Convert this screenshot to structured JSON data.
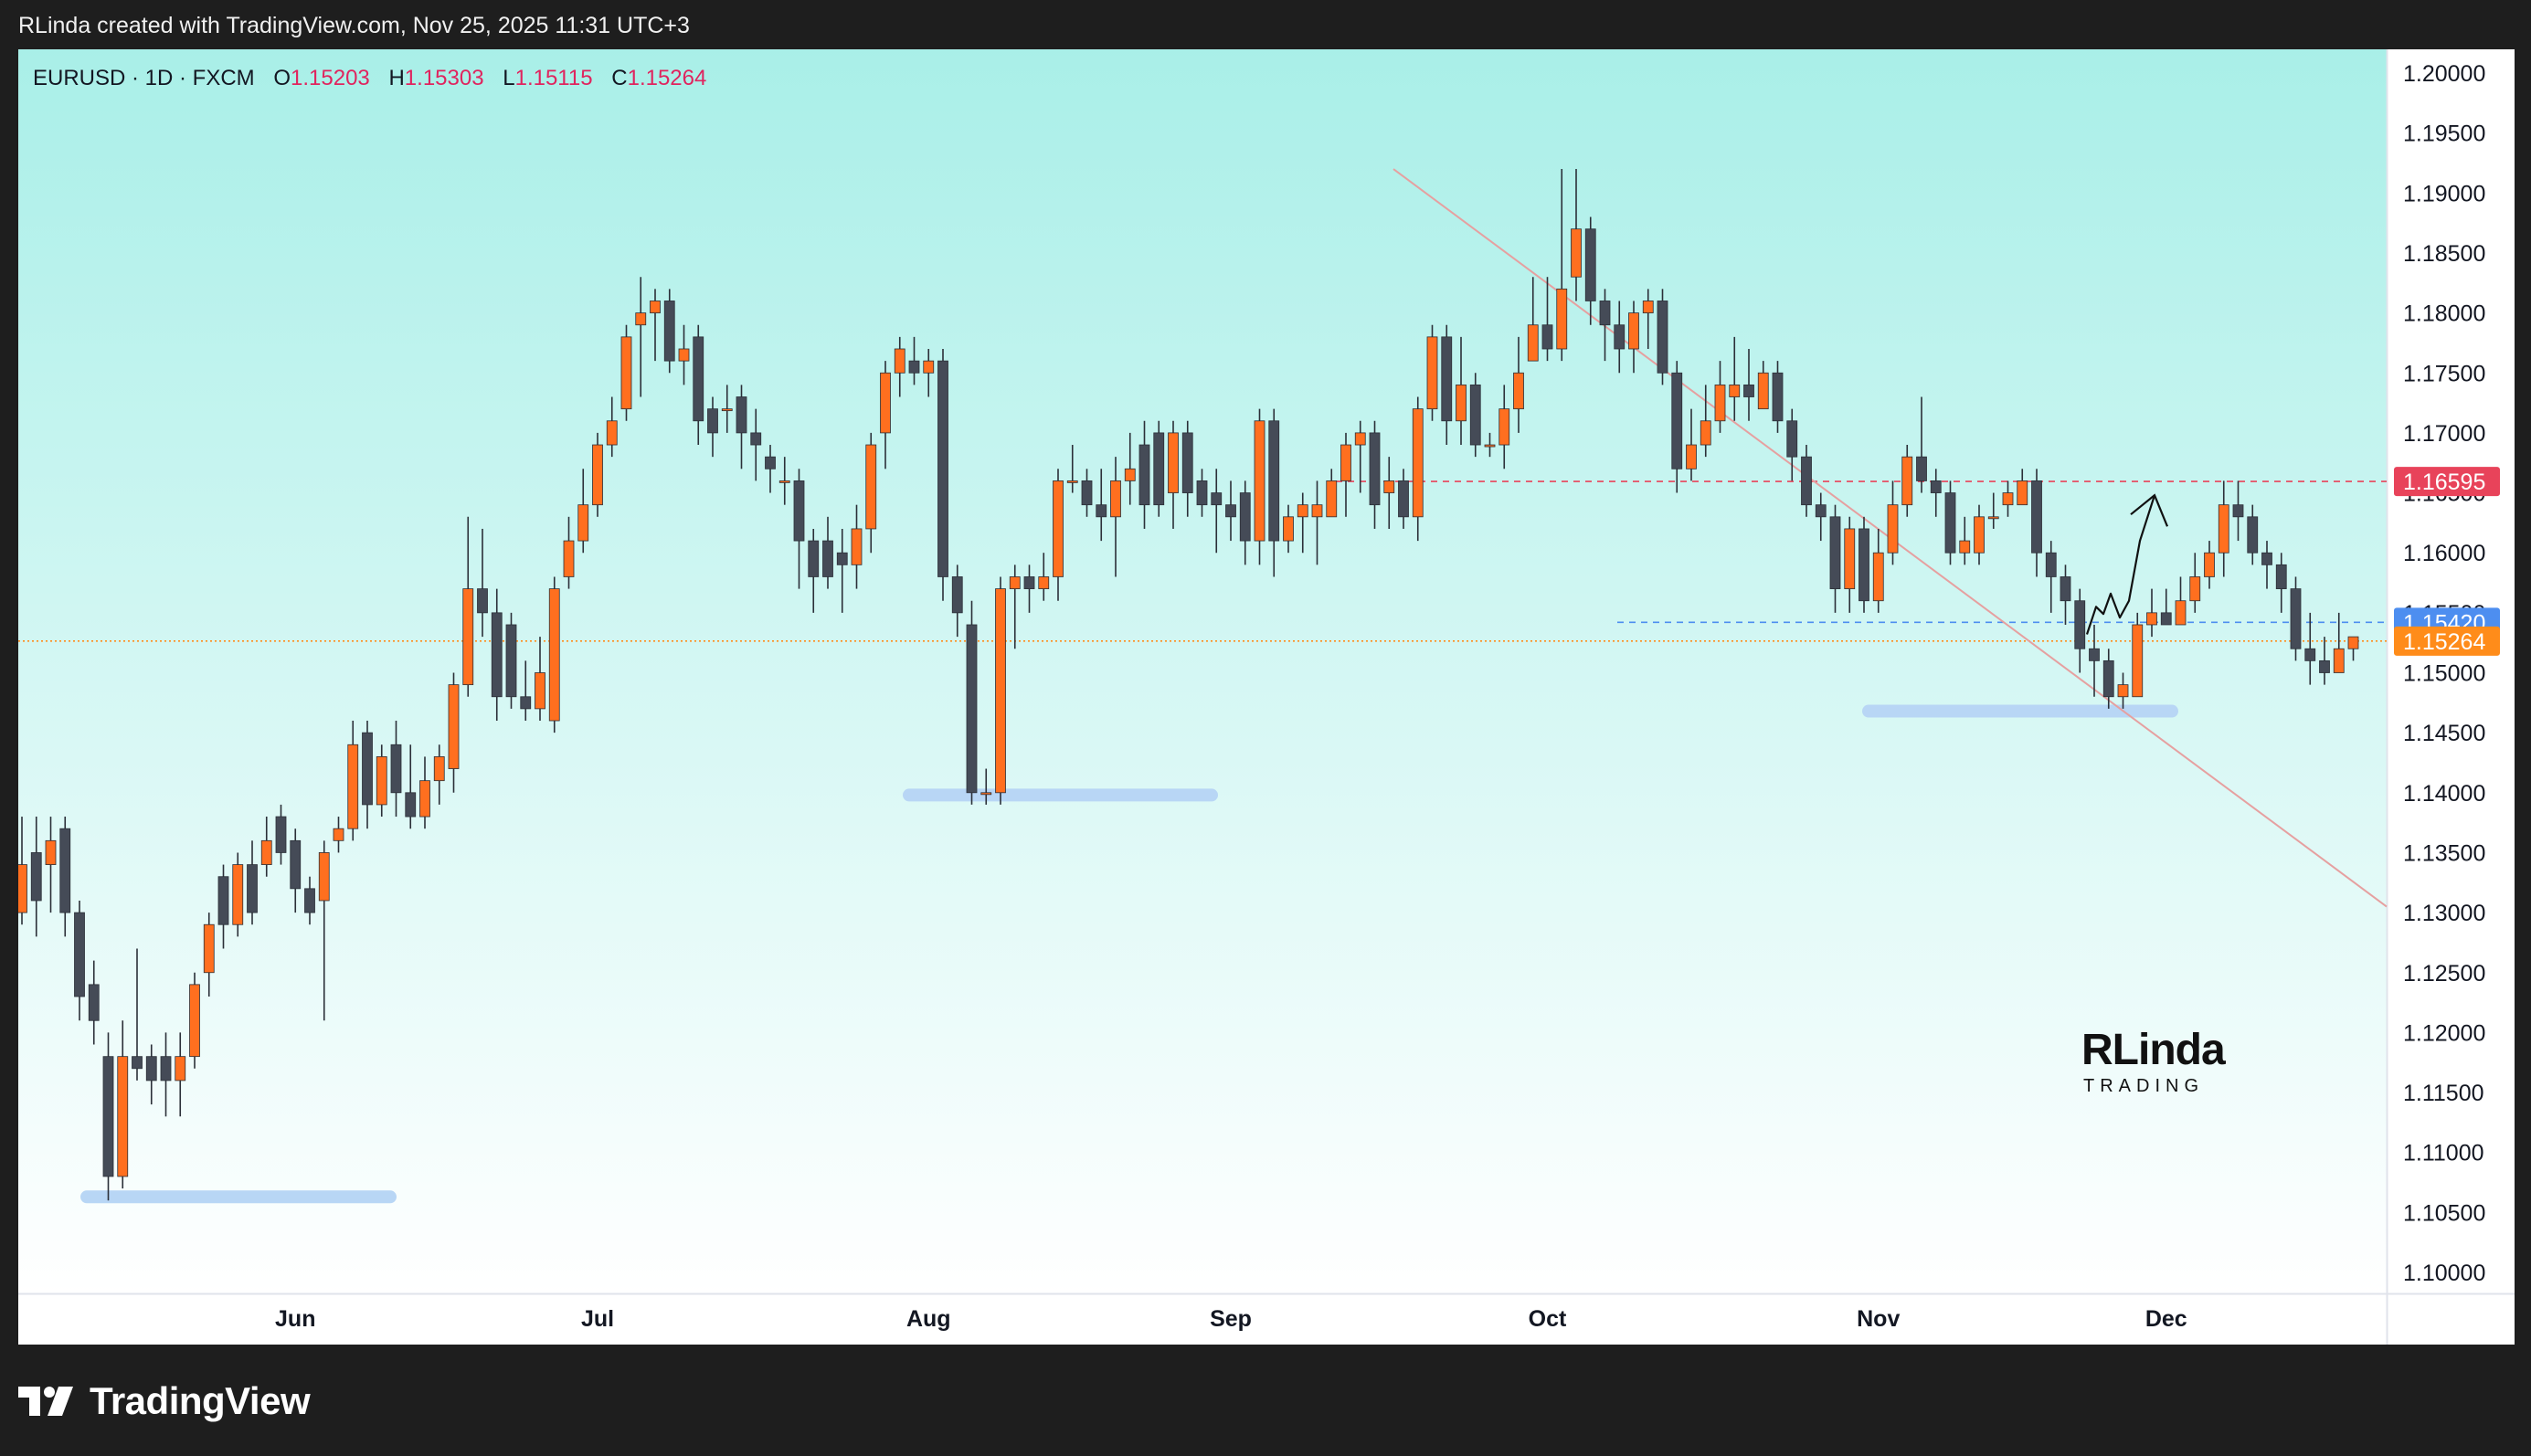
{
  "header": {
    "credit": "RLinda created with TradingView.com, Nov 25, 2025 11:31 UTC+3"
  },
  "legend": {
    "symbol": "EURUSD · 1D · FXCM",
    "o_label": "O",
    "o_value": "1.15203",
    "h_label": "H",
    "h_value": "1.15303",
    "l_label": "L",
    "l_value": "1.15115",
    "c_label": "C",
    "c_value": "1.15264"
  },
  "footer": {
    "brand": "TradingView"
  },
  "watermark": {
    "big": "RLinda",
    "small": "TRADING"
  },
  "colors": {
    "bull": "#ff6f1f",
    "bear": "#454b57",
    "bg_top": "#a9efe8",
    "bg_bottom": "#ffffff",
    "trendline": "#e6a0a0",
    "resistance": "#e8435a",
    "support_line": "#4d8ef0",
    "current_price": "#ff8c1a",
    "zone": "#b8d6f5",
    "month_label": "#131722"
  },
  "chart_data": {
    "type": "candlestick",
    "symbol": "EURUSD",
    "timeframe": "1D",
    "ylim": [
      1.1,
      1.2
    ],
    "y_ticks": [
      "1.20000",
      "1.19500",
      "1.19000",
      "1.18500",
      "1.18000",
      "1.17500",
      "1.17000",
      "1.16500",
      "1.16000",
      "1.15500",
      "1.15000",
      "1.14500",
      "1.14000",
      "1.13500",
      "1.13000",
      "1.12500",
      "1.12000",
      "1.11500",
      "1.11000",
      "1.10500",
      "1.10000"
    ],
    "x_labels": [
      {
        "label": "Jun",
        "index": 19
      },
      {
        "label": "Jul",
        "index": 40
      },
      {
        "label": "Aug",
        "index": 63
      },
      {
        "label": "Sep",
        "index": 84
      },
      {
        "label": "Oct",
        "index": 106
      },
      {
        "label": "Nov",
        "index": 129
      },
      {
        "label": "Dec",
        "index": 149
      }
    ],
    "price_tags": [
      {
        "label": "1.16595",
        "value": 1.16595,
        "color": "#e8435a"
      },
      {
        "label": "1.15420",
        "value": 1.1542,
        "color": "#4d8ef0"
      },
      {
        "label": "1.15264",
        "value": 1.15264,
        "color": "#ff8c1a"
      }
    ],
    "candles": [
      [
        1.13,
        1.134,
        1.138,
        1.129
      ],
      [
        1.135,
        1.131,
        1.138,
        1.128
      ],
      [
        1.134,
        1.136,
        1.138,
        1.13
      ],
      [
        1.137,
        1.13,
        1.138,
        1.128
      ],
      [
        1.13,
        1.123,
        1.131,
        1.121
      ],
      [
        1.124,
        1.121,
        1.126,
        1.119
      ],
      [
        1.118,
        1.108,
        1.12,
        1.106
      ],
      [
        1.108,
        1.118,
        1.121,
        1.107
      ],
      [
        1.118,
        1.117,
        1.127,
        1.116
      ],
      [
        1.118,
        1.116,
        1.119,
        1.114
      ],
      [
        1.118,
        1.116,
        1.12,
        1.113
      ],
      [
        1.116,
        1.118,
        1.12,
        1.113
      ],
      [
        1.118,
        1.124,
        1.125,
        1.117
      ],
      [
        1.125,
        1.129,
        1.13,
        1.123
      ],
      [
        1.133,
        1.129,
        1.134,
        1.127
      ],
      [
        1.129,
        1.134,
        1.135,
        1.128
      ],
      [
        1.134,
        1.13,
        1.136,
        1.129
      ],
      [
        1.134,
        1.136,
        1.138,
        1.133
      ],
      [
        1.138,
        1.135,
        1.139,
        1.134
      ],
      [
        1.136,
        1.132,
        1.137,
        1.13
      ],
      [
        1.132,
        1.13,
        1.133,
        1.129
      ],
      [
        1.131,
        1.135,
        1.136,
        1.121
      ],
      [
        1.136,
        1.137,
        1.138,
        1.135
      ],
      [
        1.137,
        1.144,
        1.146,
        1.136
      ],
      [
        1.145,
        1.139,
        1.146,
        1.137
      ],
      [
        1.139,
        1.143,
        1.144,
        1.138
      ],
      [
        1.144,
        1.14,
        1.146,
        1.138
      ],
      [
        1.14,
        1.138,
        1.144,
        1.137
      ],
      [
        1.138,
        1.141,
        1.143,
        1.137
      ],
      [
        1.141,
        1.143,
        1.144,
        1.139
      ],
      [
        1.142,
        1.149,
        1.15,
        1.14
      ],
      [
        1.149,
        1.157,
        1.163,
        1.148
      ],
      [
        1.157,
        1.155,
        1.162,
        1.153
      ],
      [
        1.155,
        1.148,
        1.157,
        1.146
      ],
      [
        1.154,
        1.148,
        1.155,
        1.147
      ],
      [
        1.148,
        1.147,
        1.151,
        1.146
      ],
      [
        1.147,
        1.15,
        1.153,
        1.146
      ],
      [
        1.146,
        1.157,
        1.158,
        1.145
      ],
      [
        1.158,
        1.161,
        1.163,
        1.157
      ],
      [
        1.161,
        1.164,
        1.167,
        1.16
      ],
      [
        1.164,
        1.169,
        1.17,
        1.163
      ],
      [
        1.169,
        1.171,
        1.173,
        1.168
      ],
      [
        1.172,
        1.178,
        1.179,
        1.171
      ],
      [
        1.179,
        1.18,
        1.183,
        1.173
      ],
      [
        1.18,
        1.181,
        1.182,
        1.176
      ],
      [
        1.181,
        1.176,
        1.182,
        1.175
      ],
      [
        1.176,
        1.177,
        1.179,
        1.174
      ],
      [
        1.178,
        1.171,
        1.179,
        1.169
      ],
      [
        1.172,
        1.17,
        1.173,
        1.168
      ],
      [
        1.172,
        1.172,
        1.174,
        1.17
      ],
      [
        1.173,
        1.17,
        1.174,
        1.167
      ],
      [
        1.17,
        1.169,
        1.172,
        1.166
      ],
      [
        1.168,
        1.167,
        1.169,
        1.165
      ],
      [
        1.166,
        1.166,
        1.168,
        1.164
      ],
      [
        1.166,
        1.161,
        1.167,
        1.157
      ],
      [
        1.161,
        1.158,
        1.162,
        1.155
      ],
      [
        1.161,
        1.158,
        1.163,
        1.157
      ],
      [
        1.16,
        1.159,
        1.162,
        1.155
      ],
      [
        1.159,
        1.162,
        1.164,
        1.157
      ],
      [
        1.162,
        1.169,
        1.17,
        1.16
      ],
      [
        1.17,
        1.175,
        1.176,
        1.167
      ],
      [
        1.175,
        1.177,
        1.178,
        1.173
      ],
      [
        1.176,
        1.175,
        1.178,
        1.174
      ],
      [
        1.175,
        1.176,
        1.177,
        1.173
      ],
      [
        1.176,
        1.158,
        1.177,
        1.156
      ],
      [
        1.158,
        1.155,
        1.159,
        1.153
      ],
      [
        1.154,
        1.14,
        1.156,
        1.139
      ],
      [
        1.14,
        1.14,
        1.142,
        1.139
      ],
      [
        1.14,
        1.157,
        1.158,
        1.139
      ],
      [
        1.157,
        1.158,
        1.159,
        1.152
      ],
      [
        1.158,
        1.157,
        1.159,
        1.155
      ],
      [
        1.157,
        1.158,
        1.16,
        1.156
      ],
      [
        1.158,
        1.166,
        1.167,
        1.156
      ],
      [
        1.166,
        1.166,
        1.169,
        1.165
      ],
      [
        1.166,
        1.164,
        1.167,
        1.163
      ],
      [
        1.164,
        1.163,
        1.167,
        1.161
      ],
      [
        1.163,
        1.166,
        1.168,
        1.158
      ],
      [
        1.166,
        1.167,
        1.17,
        1.164
      ],
      [
        1.169,
        1.164,
        1.171,
        1.162
      ],
      [
        1.17,
        1.164,
        1.171,
        1.163
      ],
      [
        1.165,
        1.17,
        1.171,
        1.162
      ],
      [
        1.17,
        1.165,
        1.171,
        1.163
      ],
      [
        1.166,
        1.164,
        1.167,
        1.163
      ],
      [
        1.165,
        1.164,
        1.167,
        1.16
      ],
      [
        1.164,
        1.163,
        1.166,
        1.161
      ],
      [
        1.165,
        1.161,
        1.166,
        1.159
      ],
      [
        1.161,
        1.171,
        1.172,
        1.159
      ],
      [
        1.171,
        1.161,
        1.172,
        1.158
      ],
      [
        1.161,
        1.163,
        1.164,
        1.16
      ],
      [
        1.163,
        1.164,
        1.165,
        1.16
      ],
      [
        1.163,
        1.164,
        1.166,
        1.159
      ],
      [
        1.163,
        1.166,
        1.167,
        1.164
      ],
      [
        1.166,
        1.169,
        1.17,
        1.163
      ],
      [
        1.169,
        1.17,
        1.171,
        1.165
      ],
      [
        1.17,
        1.164,
        1.171,
        1.162
      ],
      [
        1.165,
        1.166,
        1.168,
        1.162
      ],
      [
        1.166,
        1.163,
        1.167,
        1.162
      ],
      [
        1.163,
        1.172,
        1.173,
        1.161
      ],
      [
        1.172,
        1.178,
        1.179,
        1.171
      ],
      [
        1.178,
        1.171,
        1.179,
        1.169
      ],
      [
        1.171,
        1.174,
        1.178,
        1.169
      ],
      [
        1.174,
        1.169,
        1.175,
        1.168
      ],
      [
        1.169,
        1.169,
        1.17,
        1.168
      ],
      [
        1.169,
        1.172,
        1.174,
        1.167
      ],
      [
        1.172,
        1.175,
        1.178,
        1.17
      ],
      [
        1.176,
        1.179,
        1.183,
        1.177
      ],
      [
        1.179,
        1.177,
        1.183,
        1.176
      ],
      [
        1.177,
        1.182,
        1.192,
        1.176
      ]
    ]
  }
}
